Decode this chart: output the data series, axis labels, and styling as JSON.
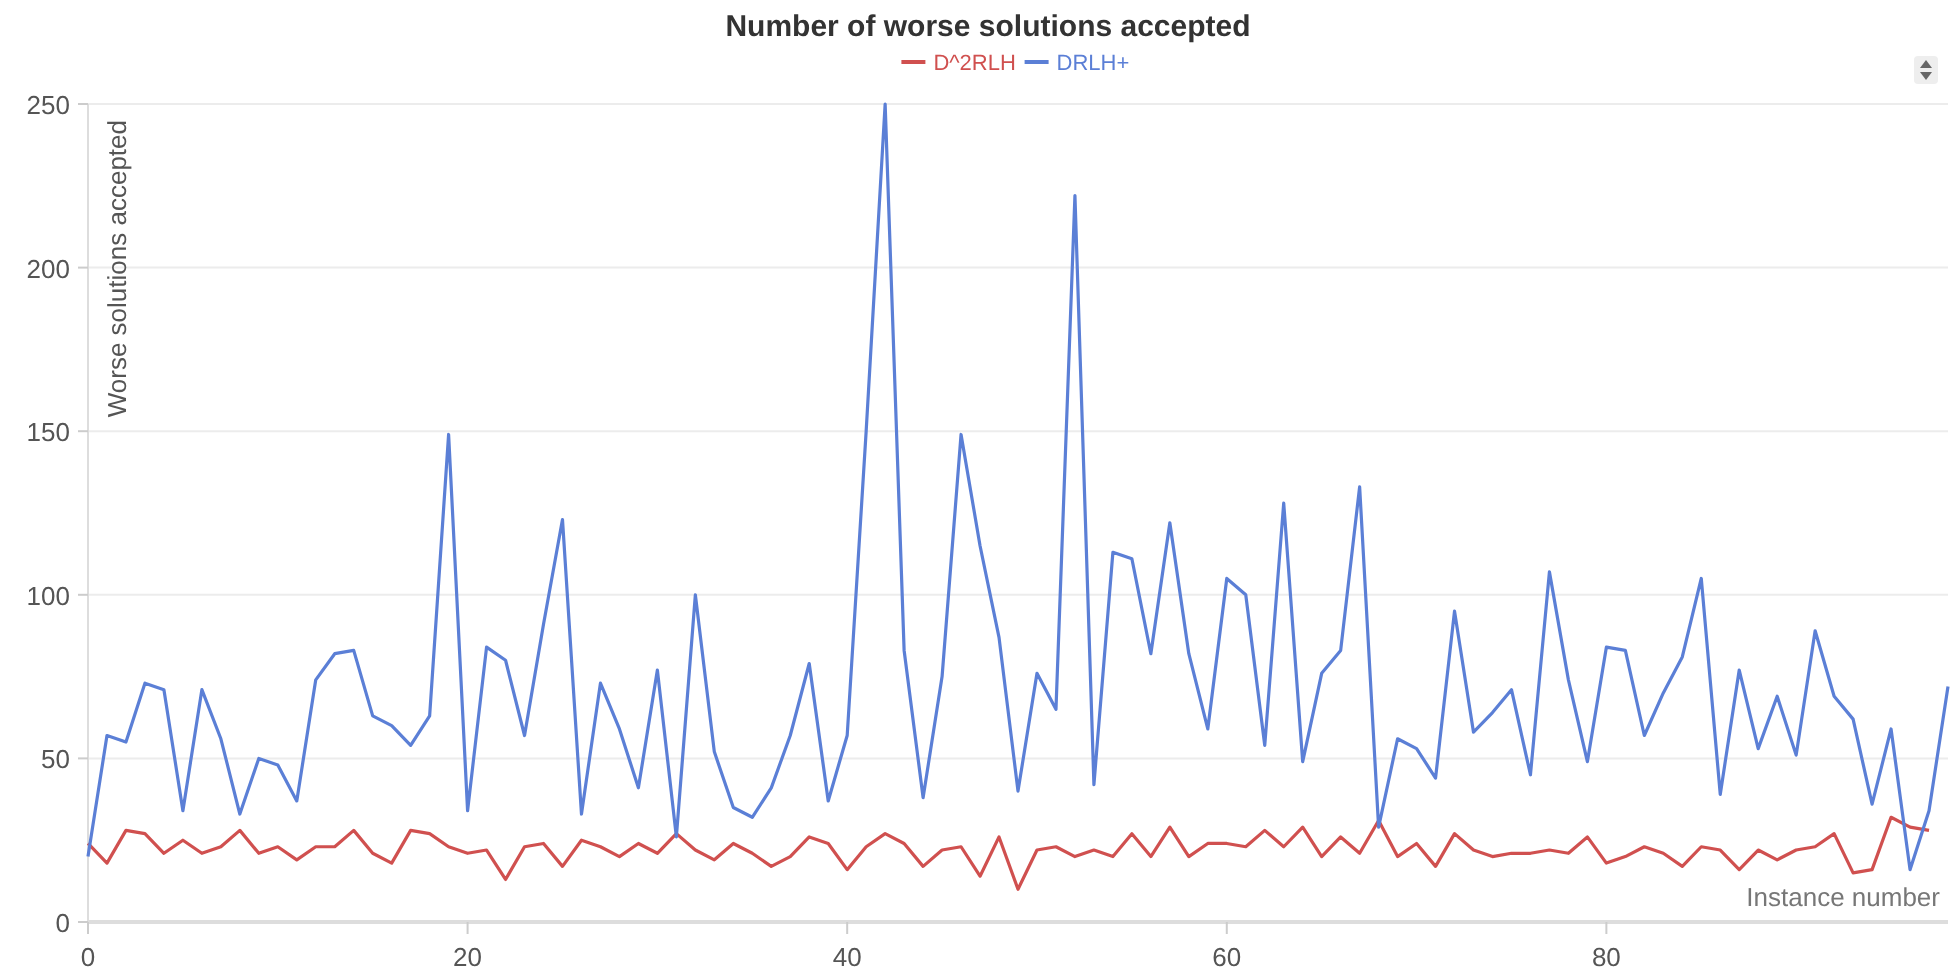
{
  "chart_data": {
    "type": "line",
    "title": "Number of worse solutions accepted",
    "xlabel": "Instance number",
    "ylabel": "Worse solutions accepted",
    "legend": "top",
    "grid": "y",
    "xlim": [
      0,
      98
    ],
    "xticks": [
      0,
      20,
      40,
      60,
      80
    ],
    "ylim": [
      0,
      250
    ],
    "yticks": [
      0,
      50,
      100,
      150,
      200,
      250
    ],
    "series": [
      {
        "name": "D^2RLH",
        "color": "#d0504f",
        "x": [
          0,
          1,
          2,
          3,
          4,
          5,
          6,
          7,
          8,
          9,
          10,
          11,
          12,
          13,
          14,
          15,
          16,
          17,
          18,
          19,
          20,
          21,
          22,
          23,
          24,
          25,
          26,
          27,
          28,
          29,
          30,
          31,
          32,
          33,
          34,
          35,
          36,
          37,
          38,
          39,
          40,
          41,
          42,
          43,
          44,
          45,
          46,
          47,
          48,
          49,
          50,
          51,
          52,
          53,
          54,
          55,
          56,
          57,
          58,
          59,
          60,
          61,
          62,
          63,
          64,
          65,
          66,
          67,
          68,
          69,
          70,
          71,
          72,
          73,
          74,
          75,
          76,
          77,
          78,
          79,
          80,
          81,
          82,
          83,
          84,
          85,
          86,
          87,
          88,
          89,
          90,
          91,
          92,
          93,
          94,
          95,
          96,
          97
        ],
        "values": [
          24,
          18,
          28,
          27,
          21,
          25,
          21,
          23,
          28,
          21,
          23,
          19,
          23,
          23,
          28,
          21,
          18,
          28,
          27,
          23,
          21,
          22,
          13,
          23,
          24,
          17,
          25,
          23,
          20,
          24,
          21,
          27,
          22,
          19,
          24,
          21,
          17,
          20,
          26,
          24,
          16,
          23,
          27,
          24,
          17,
          22,
          23,
          14,
          26,
          10,
          22,
          23,
          20,
          22,
          20,
          27,
          20,
          29,
          20,
          24,
          24,
          23,
          28,
          23,
          29,
          20,
          26,
          21,
          31,
          20,
          24,
          17,
          27,
          22,
          20,
          21,
          21,
          22,
          21,
          26,
          18,
          20,
          23,
          21,
          17,
          23,
          22,
          16,
          22,
          19,
          22,
          23,
          27,
          15,
          16,
          32,
          29,
          28
        ]
      },
      {
        "name": "DRLH+",
        "color": "#5b7fd6",
        "x": [
          0,
          1,
          2,
          3,
          4,
          5,
          6,
          7,
          8,
          9,
          10,
          11,
          12,
          13,
          14,
          15,
          16,
          17,
          18,
          19,
          20,
          21,
          22,
          23,
          24,
          25,
          26,
          27,
          28,
          29,
          30,
          31,
          32,
          33,
          34,
          35,
          36,
          37,
          38,
          39,
          40,
          41,
          42,
          43,
          44,
          45,
          46,
          47,
          48,
          49,
          50,
          51,
          52,
          53,
          54,
          55,
          56,
          57,
          58,
          59,
          60,
          61,
          62,
          63,
          64,
          65,
          66,
          67,
          68,
          69,
          70,
          71,
          72,
          73,
          74,
          75,
          76,
          77,
          78,
          79,
          80,
          81,
          82,
          83,
          84,
          85,
          86,
          87,
          88,
          89,
          90,
          91,
          92,
          93,
          94,
          95,
          96,
          97,
          98
        ],
        "values": [
          20,
          57,
          55,
          73,
          71,
          34,
          71,
          56,
          33,
          50,
          48,
          37,
          74,
          82,
          83,
          63,
          60,
          54,
          63,
          149,
          34,
          84,
          80,
          57,
          91,
          123,
          33,
          73,
          59,
          41,
          77,
          26,
          100,
          52,
          35,
          32,
          41,
          57,
          79,
          37,
          57,
          150,
          250,
          83,
          38,
          75,
          149,
          115,
          87,
          40,
          76,
          65,
          222,
          42,
          113,
          111,
          82,
          122,
          82,
          59,
          105,
          100,
          54,
          128,
          49,
          76,
          83,
          133,
          29,
          56,
          53,
          44,
          95,
          58,
          64,
          71,
          45,
          107,
          74,
          49,
          84,
          83,
          57,
          70,
          81,
          105,
          39,
          77,
          53,
          69,
          51,
          89,
          69,
          62,
          36,
          59,
          16,
          34,
          72
        ]
      }
    ]
  }
}
